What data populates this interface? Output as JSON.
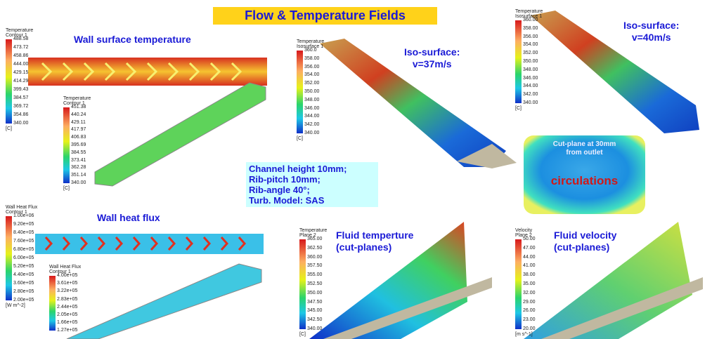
{
  "header": {
    "title": "Flow & Temperature Fields"
  },
  "panels": {
    "wall_temperature": {
      "label": "Wall surface temperature",
      "legend": {
        "title": [
          "Temperature",
          "Contour 1"
        ],
        "ticks": [
          "488.58",
          "473.72",
          "458.86",
          "444.00",
          "429.15",
          "414.29",
          "399.43",
          "384.57",
          "369.72",
          "354.86",
          "340.00"
        ],
        "unit": "[C]"
      },
      "legend2": {
        "title": [
          "Temperature",
          "Contour 1"
        ],
        "ticks": [
          "451.38",
          "440.24",
          "429.11",
          "417.97",
          "406.83",
          "395.69",
          "384.55",
          "373.41",
          "362.28",
          "351.14",
          "340.00"
        ],
        "unit": "[C]"
      }
    },
    "iso_37": {
      "label": [
        "Iso-surface:",
        "v=37m/s"
      ],
      "legend": {
        "title": [
          "Temperature",
          "Isosurface 1"
        ],
        "ticks": [
          "360.0",
          "358.00",
          "356.00",
          "354.00",
          "352.00",
          "350.00",
          "348.00",
          "346.00",
          "344.00",
          "342.00",
          "340.00"
        ],
        "unit": "[C]"
      }
    },
    "iso_40": {
      "label": [
        "Iso-surface:",
        "v=40m/s"
      ],
      "legend": {
        "title": [
          "Temperature",
          "Isosurface 1"
        ],
        "ticks": [
          "360.00",
          "358.00",
          "356.00",
          "354.00",
          "352.00",
          "350.00",
          "348.00",
          "346.00",
          "344.00",
          "342.00",
          "340.00"
        ],
        "unit": "[C]"
      }
    },
    "cut_plane": {
      "label": [
        "Cut-plane at 30mm",
        "from outlet"
      ],
      "annotation": "circulations"
    },
    "setup": {
      "lines": [
        "Channel height 10mm;",
        "Rib-pitch 10mm;",
        "Rib-angle 40°;",
        "Turb. Model: SAS"
      ]
    },
    "wall_heat_flux": {
      "label": "Wall heat flux",
      "legend": {
        "title": [
          "Wall Heat Flux",
          "Contour 1"
        ],
        "ticks": [
          "1.00e+06",
          "9.20e+05",
          "8.40e+05",
          "7.60e+05",
          "6.80e+05",
          "6.00e+05",
          "5.20e+05",
          "4.40e+05",
          "3.60e+05",
          "2.80e+05",
          "2.00e+05"
        ],
        "unit": "[W m^-2]"
      },
      "legend2": {
        "title": [
          "Wall Heat Flux",
          "Contour 1"
        ],
        "ticks": [
          "4.00e+05",
          "3.61e+05",
          "3.22e+05",
          "2.83e+05",
          "2.44e+05",
          "2.05e+05",
          "1.66e+05",
          "1.27e+05"
        ]
      }
    },
    "fluid_temperature": {
      "label": [
        "Fluid temperture",
        "(cut-planes)"
      ],
      "legend": {
        "title": [
          "Temperature",
          "Plane 2"
        ],
        "ticks": [
          "365.00",
          "362.50",
          "360.00",
          "357.50",
          "355.00",
          "352.50",
          "350.00",
          "347.50",
          "345.00",
          "342.50",
          "340.00"
        ],
        "unit": "[C]"
      }
    },
    "fluid_velocity": {
      "label": [
        "Fluid velocity",
        "(cut-planes)"
      ],
      "legend": {
        "title": [
          "Velocity",
          "Plane 2"
        ],
        "ticks": [
          "50.00",
          "47.00",
          "44.00",
          "41.00",
          "38.00",
          "35.00",
          "32.00",
          "29.00",
          "26.00",
          "23.00",
          "20.00"
        ],
        "unit": "[m s^-1]"
      }
    }
  }
}
